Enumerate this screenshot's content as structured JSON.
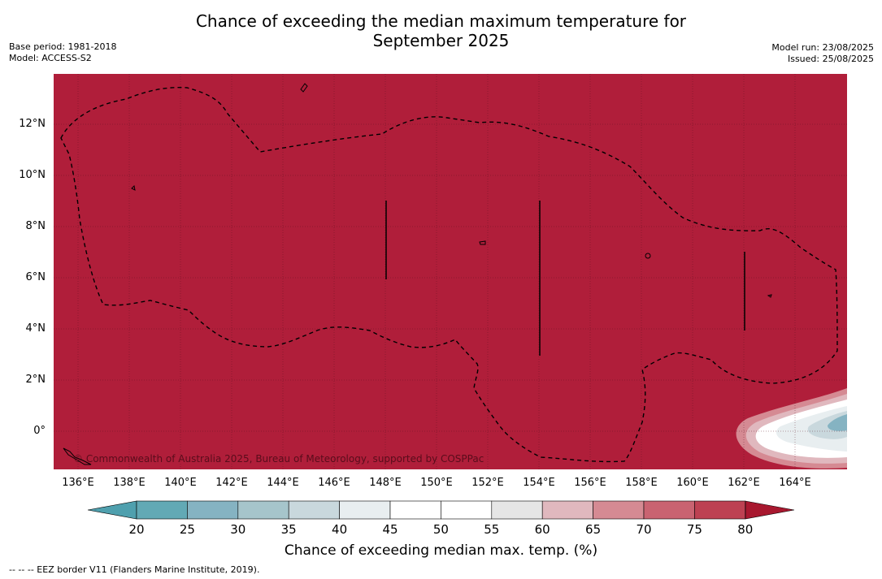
{
  "title_line1": "Chance of exceeding the median maximum temperature for",
  "title_line2": "September 2025",
  "meta_left": [
    "Base period: 1981-2018",
    "Model: ACCESS-S2"
  ],
  "meta_right": [
    "Model run: 23/08/2025",
    "Issued: 25/08/2025"
  ],
  "copyright": "© Commonwealth of Australia 2025, Bureau of Meteorology, supported by COSPPac",
  "x_ticks": [
    "136°E",
    "138°E",
    "140°E",
    "142°E",
    "144°E",
    "146°E",
    "148°E",
    "150°E",
    "152°E",
    "154°E",
    "156°E",
    "158°E",
    "160°E",
    "162°E",
    "164°E"
  ],
  "y_ticks": [
    "12°N",
    "10°N",
    "8°N",
    "6°N",
    "4°N",
    "2°N",
    "0°"
  ],
  "colorbar": {
    "labels": [
      "20",
      "25",
      "30",
      "35",
      "40",
      "45",
      "50",
      "55",
      "60",
      "65",
      "70",
      "75",
      "80"
    ],
    "colors": [
      "#62a9b5",
      "#85b3c2",
      "#a6c5cb",
      "#c9d8dd",
      "#e8eef0",
      "#ffffff",
      "#ffffff",
      "#e6e6e6",
      "#e0b8be",
      "#d58a93",
      "#c96371",
      "#bd4152"
    ],
    "under_color": "#4fa0ae",
    "over_color": "#a8182f",
    "title": "Chance of exceeding median max. temp. (%)"
  },
  "map_fill": "#b01e3a",
  "footer": "--  --  -- EEZ border V11 (Flanders Marine Institute, 2019)."
}
